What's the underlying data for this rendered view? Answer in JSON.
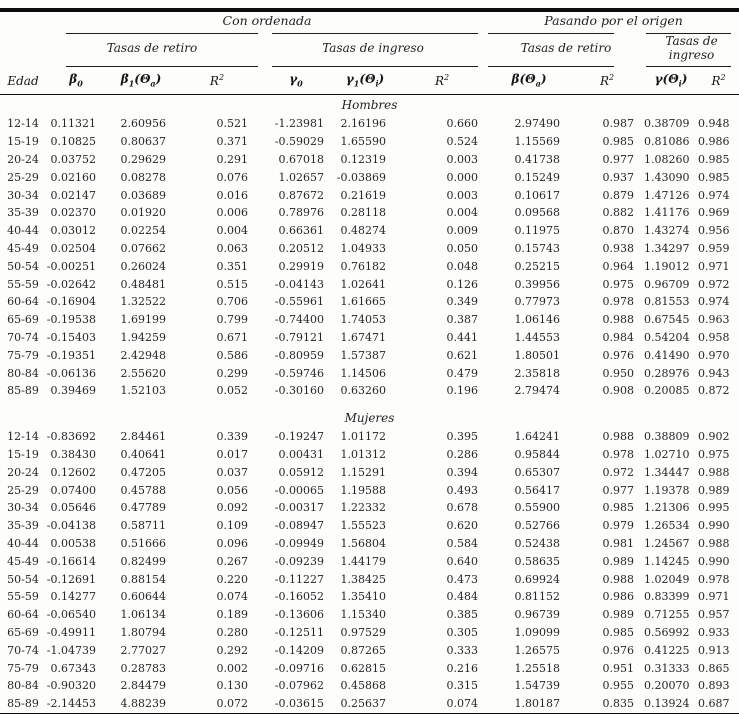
{
  "page": {
    "background": "#fdfdfc",
    "text_color": "#242424",
    "rule_color": "#1c1c1c"
  },
  "table": {
    "groups": {
      "con_ordenada": "Con ordenada",
      "origen": "Pasando por el origen"
    },
    "subgroups": {
      "retiro": "Tasas de retiro",
      "ingreso": "Tasas de ingreso"
    },
    "columns": [
      {
        "id": "edad",
        "parts": [
          [
            "lbl",
            "Edad"
          ]
        ]
      },
      {
        "id": "beta0",
        "parts": [
          [
            "g",
            "β"
          ],
          [
            "sub",
            "0"
          ]
        ]
      },
      {
        "id": "beta1-theta-a",
        "parts": [
          [
            "g",
            "β"
          ],
          [
            "sub",
            "1"
          ],
          [
            "g",
            "("
          ],
          [
            "g",
            "Θ"
          ],
          [
            "sub",
            "a"
          ],
          [
            "g",
            ")"
          ]
        ]
      },
      {
        "id": "r2-retiro-ord",
        "parts": [
          [
            "r",
            "R"
          ],
          [
            "sup",
            "2"
          ]
        ]
      },
      {
        "id": "gamma0",
        "parts": [
          [
            "g",
            "γ"
          ],
          [
            "sub",
            "0"
          ]
        ]
      },
      {
        "id": "gamma1-theta-i",
        "parts": [
          [
            "g",
            "γ"
          ],
          [
            "sub",
            "1"
          ],
          [
            "g",
            "("
          ],
          [
            "g",
            "Θ"
          ],
          [
            "sub",
            "i"
          ],
          [
            "g",
            ")"
          ]
        ]
      },
      {
        "id": "r2-ingreso-ord",
        "parts": [
          [
            "r",
            "R"
          ],
          [
            "sup",
            "2"
          ]
        ]
      },
      {
        "id": "beta-theta-a",
        "parts": [
          [
            "g",
            "β"
          ],
          [
            "g",
            "("
          ],
          [
            "g",
            "Θ"
          ],
          [
            "sub",
            "a"
          ],
          [
            "g",
            ")"
          ]
        ]
      },
      {
        "id": "r2-retiro-orig",
        "parts": [
          [
            "r",
            "R"
          ],
          [
            "sup",
            "2"
          ]
        ]
      },
      {
        "id": "gamma-theta-i",
        "parts": [
          [
            "g",
            "γ"
          ],
          [
            "g",
            "("
          ],
          [
            "g",
            "Θ"
          ],
          [
            "sub",
            "i"
          ],
          [
            "g",
            ")"
          ]
        ]
      },
      {
        "id": "r2-ingreso-orig",
        "parts": [
          [
            "r",
            "R"
          ],
          [
            "sup",
            "2"
          ]
        ]
      }
    ],
    "sections": [
      {
        "label": "Hombres",
        "rows": [
          [
            "12-14",
            "0.11321",
            "2.60956",
            "0.521",
            "-1.23981",
            "2.16196",
            "0.660",
            "2.97490",
            "0.987",
            "0.38709",
            "0.948"
          ],
          [
            "15-19",
            "0.10825",
            "0.80637",
            "0.371",
            "-0.59029",
            "1.65590",
            "0.524",
            "1.15569",
            "0.985",
            "0.81086",
            "0.986"
          ],
          [
            "20-24",
            "0.03752",
            "0.29629",
            "0.291",
            "0.67018",
            "0.12319",
            "0.003",
            "0.41738",
            "0.977",
            "1.08260",
            "0.985"
          ],
          [
            "25-29",
            "0.02160",
            "0.08278",
            "0.076",
            "1.02657",
            "-0.03869",
            "0.000",
            "0.15249",
            "0.937",
            "1.43090",
            "0.985"
          ],
          [
            "30-34",
            "0.02147",
            "0.03689",
            "0.016",
            "0.87672",
            "0.21619",
            "0.003",
            "0.10617",
            "0.879",
            "1.47126",
            "0.974"
          ],
          [
            "35-39",
            "0.02370",
            "0.01920",
            "0.006",
            "0.78976",
            "0.28118",
            "0.004",
            "0.09568",
            "0.882",
            "1.41176",
            "0.969"
          ],
          [
            "40-44",
            "0.03012",
            "0.02254",
            "0.004",
            "0.66361",
            "0.48274",
            "0.009",
            "0.11975",
            "0.870",
            "1.43274",
            "0.956"
          ],
          [
            "45-49",
            "0.02504",
            "0.07662",
            "0.063",
            "0.20512",
            "1.04933",
            "0.050",
            "0.15743",
            "0.938",
            "1.34297",
            "0.959"
          ],
          [
            "50-54",
            "-0.00251",
            "0.26024",
            "0.351",
            "0.29919",
            "0.76182",
            "0.048",
            "0.25215",
            "0.964",
            "1.19012",
            "0.971"
          ],
          [
            "55-59",
            "-0.02642",
            "0.48481",
            "0.515",
            "-0.04143",
            "1.02641",
            "0.126",
            "0.39956",
            "0.975",
            "0.96709",
            "0.972"
          ],
          [
            "60-64",
            "-0.16904",
            "1.32522",
            "0.706",
            "-0.55961",
            "1.61665",
            "0.349",
            "0.77973",
            "0.978",
            "0.81553",
            "0.974"
          ],
          [
            "65-69",
            "-0.19538",
            "1.69199",
            "0.799",
            "-0.74400",
            "1.74053",
            "0.387",
            "1.06146",
            "0.988",
            "0.67545",
            "0.963"
          ],
          [
            "70-74",
            "-0.15403",
            "1.94259",
            "0.671",
            "-0.79121",
            "1.67471",
            "0.441",
            "1.44553",
            "0.984",
            "0.54204",
            "0.958"
          ],
          [
            "75-79",
            "-0.19351",
            "2.42948",
            "0.586",
            "-0.80959",
            "1.57387",
            "0.621",
            "1.80501",
            "0.976",
            "0.41490",
            "0.970"
          ],
          [
            "80-84",
            "-0.06136",
            "2.55620",
            "0.299",
            "-0.59746",
            "1.14506",
            "0.479",
            "2.35818",
            "0.950",
            "0.28976",
            "0.943"
          ],
          [
            "85-89",
            "0.39469",
            "1.52103",
            "0.052",
            "-0.30160",
            "0.63260",
            "0.196",
            "2.79474",
            "0.908",
            "0.20085",
            "0.872"
          ]
        ]
      },
      {
        "label": "Mujeres",
        "rows": [
          [
            "12-14",
            "-0.83692",
            "2.84461",
            "0.339",
            "-0.19247",
            "1.01172",
            "0.395",
            "1.64241",
            "0.988",
            "0.38809",
            "0.902"
          ],
          [
            "15-19",
            "0.38430",
            "0.40641",
            "0.017",
            "0.00431",
            "1.01312",
            "0.286",
            "0.95844",
            "0.978",
            "1.02710",
            "0.975"
          ],
          [
            "20-24",
            "0.12602",
            "0.47205",
            "0.037",
            "0.05912",
            "1.15291",
            "0.394",
            "0.65307",
            "0.972",
            "1.34447",
            "0.988"
          ],
          [
            "25-29",
            "0.07400",
            "0.45788",
            "0.056",
            "-0.00065",
            "1.19588",
            "0.493",
            "0.56417",
            "0.977",
            "1.19378",
            "0.989"
          ],
          [
            "30-34",
            "0.05646",
            "0.47789",
            "0.092",
            "-0.00317",
            "1.22332",
            "0.678",
            "0.55900",
            "0.985",
            "1.21306",
            "0.995"
          ],
          [
            "35-39",
            "-0.04138",
            "0.58711",
            "0.109",
            "-0.08947",
            "1.55523",
            "0.620",
            "0.52766",
            "0.979",
            "1.26534",
            "0.990"
          ],
          [
            "40-44",
            "0.00538",
            "0.51666",
            "0.096",
            "-0.09949",
            "1.56804",
            "0.584",
            "0.52438",
            "0.981",
            "1.24567",
            "0.988"
          ],
          [
            "45-49",
            "-0.16614",
            "0.82499",
            "0.267",
            "-0.09239",
            "1.44179",
            "0.640",
            "0.58635",
            "0.989",
            "1.14245",
            "0.990"
          ],
          [
            "50-54",
            "-0.12691",
            "0.88154",
            "0.220",
            "-0.11227",
            "1.38425",
            "0.473",
            "0.69924",
            "0.988",
            "1.02049",
            "0.978"
          ],
          [
            "55-59",
            "0.14277",
            "0.60644",
            "0.074",
            "-0.16052",
            "1.35410",
            "0.484",
            "0.81152",
            "0.986",
            "0.83399",
            "0.971"
          ],
          [
            "60-64",
            "-0.06540",
            "1.06134",
            "0.189",
            "-0.13606",
            "1.15340",
            "0.385",
            "0.96739",
            "0.989",
            "0.71255",
            "0.957"
          ],
          [
            "65-69",
            "-0.49911",
            "1.80794",
            "0.280",
            "-0.12511",
            "0.97529",
            "0.305",
            "1.09099",
            "0.985",
            "0.56992",
            "0.933"
          ],
          [
            "70-74",
            "-1.04739",
            "2.77027",
            "0.292",
            "-0.14209",
            "0.87265",
            "0.333",
            "1.26575",
            "0.976",
            "0.41225",
            "0.913"
          ],
          [
            "75-79",
            "0.67343",
            "0.28783",
            "0.002",
            "-0.09716",
            "0.62815",
            "0.216",
            "1.25518",
            "0.951",
            "0.31333",
            "0.865"
          ],
          [
            "80-84",
            "-0.90320",
            "2.84479",
            "0.130",
            "-0.07962",
            "0.45868",
            "0.315",
            "1.54739",
            "0.955",
            "0.20070",
            "0.893"
          ],
          [
            "85-89",
            "-2.14453",
            "4.88239",
            "0.072",
            "-0.03615",
            "0.25637",
            "0.074",
            "1.80187",
            "0.835",
            "0.13924",
            "0.687"
          ]
        ]
      }
    ]
  }
}
